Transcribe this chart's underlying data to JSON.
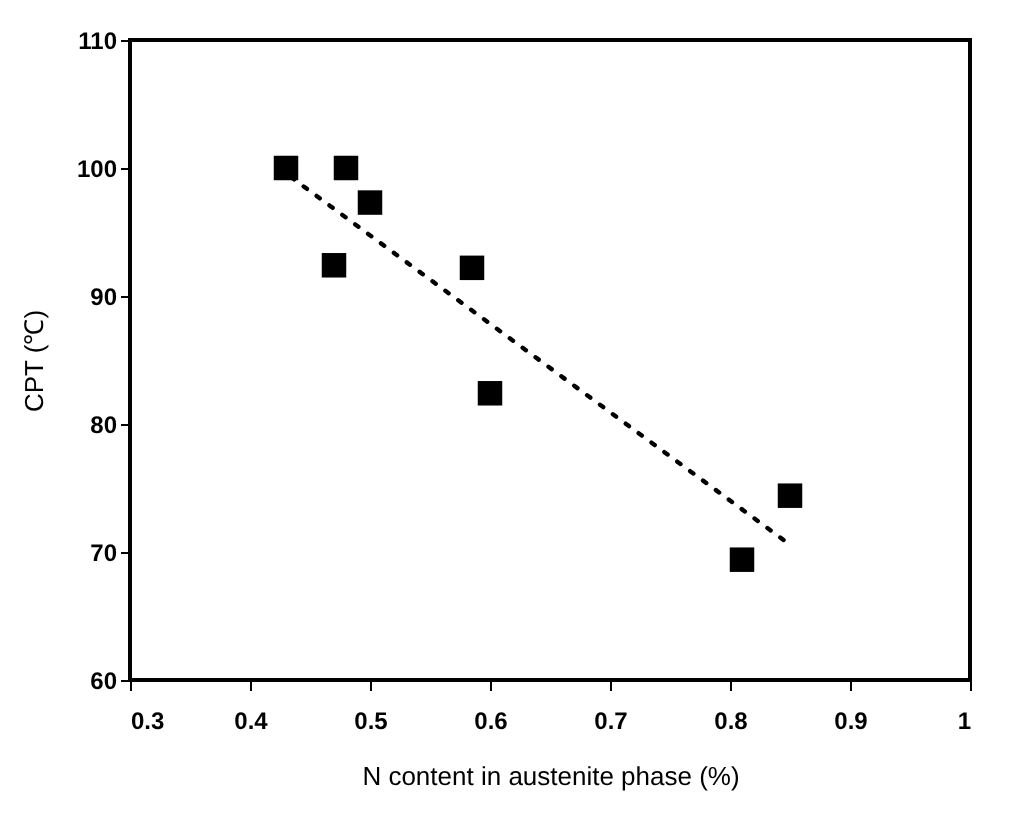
{
  "chart_data": {
    "type": "scatter",
    "xlabel": "N content in austenite phase (%)",
    "ylabel": "CPT (℃)",
    "xlim": [
      0.3,
      1
    ],
    "xticks": [
      0.3,
      0.4,
      0.5,
      0.6,
      0.7,
      0.8,
      0.9,
      1
    ],
    "ylim": [
      60,
      110
    ],
    "yticks": [
      60,
      70,
      80,
      90,
      100,
      110
    ],
    "series": [
      {
        "color": "#000000",
        "marker": "square",
        "x": [
          0.43,
          0.48,
          0.5,
          0.47,
          0.585,
          0.6,
          0.81,
          0.85
        ],
        "values": [
          100,
          100,
          97.3,
          92.4,
          92.2,
          82.4,
          69.4,
          74.4
        ]
      },
      {
        "type": "line",
        "color": "#000000",
        "line_style": "dotted",
        "x": [
          0.434,
          0.851
        ],
        "values": [
          99.3,
          70.5
        ]
      }
    ]
  }
}
